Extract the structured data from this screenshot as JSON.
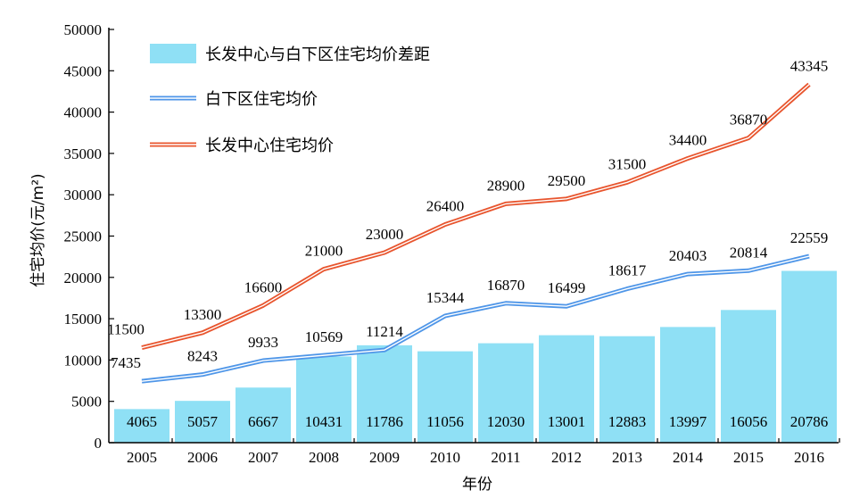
{
  "chart_data": {
    "type": "bar",
    "categories": [
      "2005",
      "2006",
      "2007",
      "2008",
      "2009",
      "2010",
      "2011",
      "2012",
      "2013",
      "2014",
      "2015",
      "2016"
    ],
    "series": [
      {
        "name": "长发中心与白下区住宅均价差距",
        "type": "bar",
        "color": "#8fe0f5",
        "values": [
          4065,
          5057,
          6667,
          10431,
          11786,
          11056,
          12030,
          13001,
          12883,
          13997,
          16056,
          20786
        ]
      },
      {
        "name": "白下区住宅均价",
        "type": "line",
        "color": "#4f96e8",
        "values": [
          7435,
          8243,
          9933,
          10569,
          11214,
          15344,
          16870,
          16499,
          18617,
          20403,
          20814,
          22559
        ]
      },
      {
        "name": "长发中心住宅均价",
        "type": "line",
        "color": "#e8552e",
        "values": [
          11500,
          13300,
          16600,
          21000,
          23000,
          26400,
          28900,
          29500,
          31500,
          34400,
          36870,
          43345
        ]
      }
    ],
    "xlabel": "年份",
    "ylabel": "住宅均价(元/m²)",
    "ylim": [
      0,
      50000
    ],
    "yticks": [
      "0",
      "5000",
      "10000",
      "15000",
      "20000",
      "25000",
      "30000",
      "35000",
      "40000",
      "45000",
      "50000"
    ],
    "grid": false,
    "legend_position": "top-left"
  }
}
